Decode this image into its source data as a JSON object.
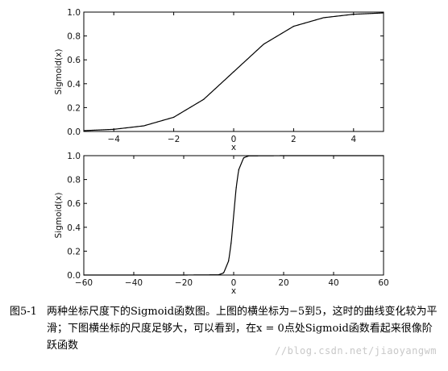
{
  "chart_data": [
    {
      "type": "line",
      "xlabel": "x",
      "ylabel": "Sigmoid(x)",
      "xlim": [
        -5,
        5
      ],
      "ylim": [
        0.0,
        1.0
      ],
      "xticks": [
        -4,
        -2,
        0,
        2,
        4
      ],
      "xtick_labels": [
        "−4",
        "−2",
        "0",
        "2",
        "4"
      ],
      "yticks": [
        0.0,
        0.2,
        0.4,
        0.6,
        0.8,
        1.0
      ],
      "ytick_labels": [
        "0.0",
        "0.2",
        "0.4",
        "0.6",
        "0.8",
        "1.0"
      ],
      "grid": false,
      "series": [
        {
          "x": [
            -5,
            -4,
            -3,
            -2,
            -1,
            0,
            1,
            2,
            3,
            4,
            5
          ],
          "values": [
            0.007,
            0.018,
            0.047,
            0.119,
            0.269,
            0.5,
            0.731,
            0.881,
            0.953,
            0.982,
            0.993
          ]
        }
      ]
    },
    {
      "type": "line",
      "xlabel": "x",
      "ylabel": "Sigmoid(x)",
      "xlim": [
        -60,
        60
      ],
      "ylim": [
        0.0,
        1.0
      ],
      "xticks": [
        -60,
        -40,
        -20,
        0,
        20,
        40,
        60
      ],
      "xtick_labels": [
        "−60",
        "−40",
        "−20",
        "0",
        "20",
        "40",
        "60"
      ],
      "yticks": [
        0.0,
        0.2,
        0.4,
        0.6,
        0.8,
        1.0
      ],
      "ytick_labels": [
        "0.0",
        "0.2",
        "0.4",
        "0.6",
        "0.8",
        "1.0"
      ],
      "grid": false,
      "series": [
        {
          "x": [
            -60,
            -20,
            -6,
            -4,
            -2,
            -1,
            0,
            1,
            2,
            4,
            6,
            20,
            60
          ],
          "values": [
            0.0,
            0.0,
            0.002,
            0.018,
            0.119,
            0.269,
            0.5,
            0.731,
            0.881,
            0.982,
            0.998,
            1.0,
            1.0
          ]
        }
      ]
    }
  ],
  "caption": {
    "number": "图5-1",
    "text": "两种坐标尺度下的Sigmoid函数图。上图的横坐标为−5到5，这时的曲线变化较为平滑；下图横坐标的尺度足够大，可以看到，在x = 0点处Sigmoid函数看起来很像阶跃函数"
  },
  "watermark": "//blog.csdn.net/jiaoyangwm"
}
